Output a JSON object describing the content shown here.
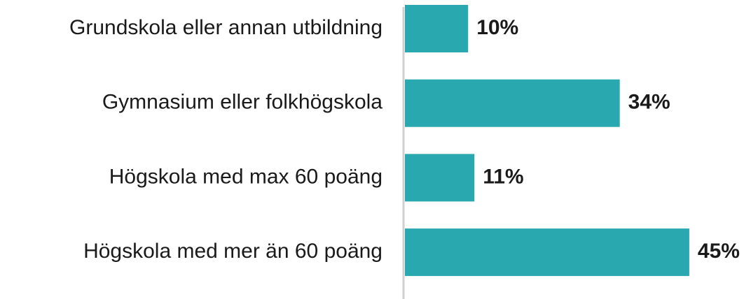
{
  "chart_data": {
    "type": "hbar",
    "categories": [
      "Grundskola eller annan utbildning",
      "Gymnasium eller folkhögskola",
      "Högskola med max 60 poäng",
      "Högskola med mer än 60 poäng"
    ],
    "values": [
      10,
      34,
      11,
      45
    ],
    "value_labels": [
      "10%",
      "34%",
      "11%",
      "45%"
    ],
    "color": "#2aa8b0"
  }
}
